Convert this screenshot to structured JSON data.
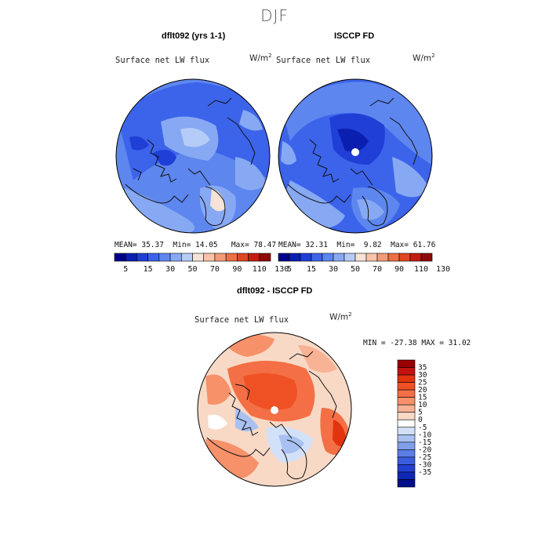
{
  "title": "DJF",
  "panels": [
    {
      "title": "dflt092 (yrs 1-1)",
      "variable": "Surface net LW flux",
      "units_base": "W/m",
      "units_exp": "2",
      "stats": {
        "mean_label": "MEAN=",
        "mean": "35.37",
        "min_label": "Min=",
        "min": "14.05",
        "max_label": "Max=",
        "max": "78.47"
      }
    },
    {
      "title": "ISCCP FD",
      "variable": "Surface net LW flux",
      "units_base": "W/m",
      "units_exp": "2",
      "stats": {
        "mean_label": "MEAN=",
        "mean": "32.31",
        "min_label": "Min=",
        "min": "9.82",
        "max_label": "Max=",
        "max": "61.76"
      }
    }
  ],
  "diff_panel": {
    "title": "dflt092 - ISCCP FD",
    "variable": "Surface net LW flux",
    "units_base": "W/m",
    "units_exp": "2",
    "minmax": "MIN = -27.38 MAX =  31.02"
  },
  "colorbar_abs": {
    "labels": [
      "5",
      "15",
      "30",
      "50",
      "70",
      "90",
      "110",
      "130"
    ],
    "colors": [
      "#00008b",
      "#0a1fb0",
      "#1f3fd6",
      "#3c64ea",
      "#5d86ef",
      "#87a9f3",
      "#b5ccf8",
      "#f4e3d6",
      "#f8c3a8",
      "#f29b78",
      "#ec6f45",
      "#e0461f",
      "#c21e10",
      "#8e0a0a"
    ]
  },
  "colorbar_diff": {
    "labels": [
      "35",
      "30",
      "25",
      "20",
      "15",
      "10",
      "5",
      "0",
      "-5",
      "-10",
      "-15",
      "-20",
      "-25",
      "-30",
      "-35"
    ],
    "colors": [
      "#990000",
      "#c4130e",
      "#e2330f",
      "#ef5124",
      "#f46f45",
      "#f79169",
      "#f8b295",
      "#f8d9c6",
      "#ffffff",
      "#d3e1f8",
      "#a8c1f1",
      "#7f9fea",
      "#5a7ee5",
      "#3a5ddf",
      "#2340d0",
      "#0f27b4",
      "#000f88"
    ]
  }
}
